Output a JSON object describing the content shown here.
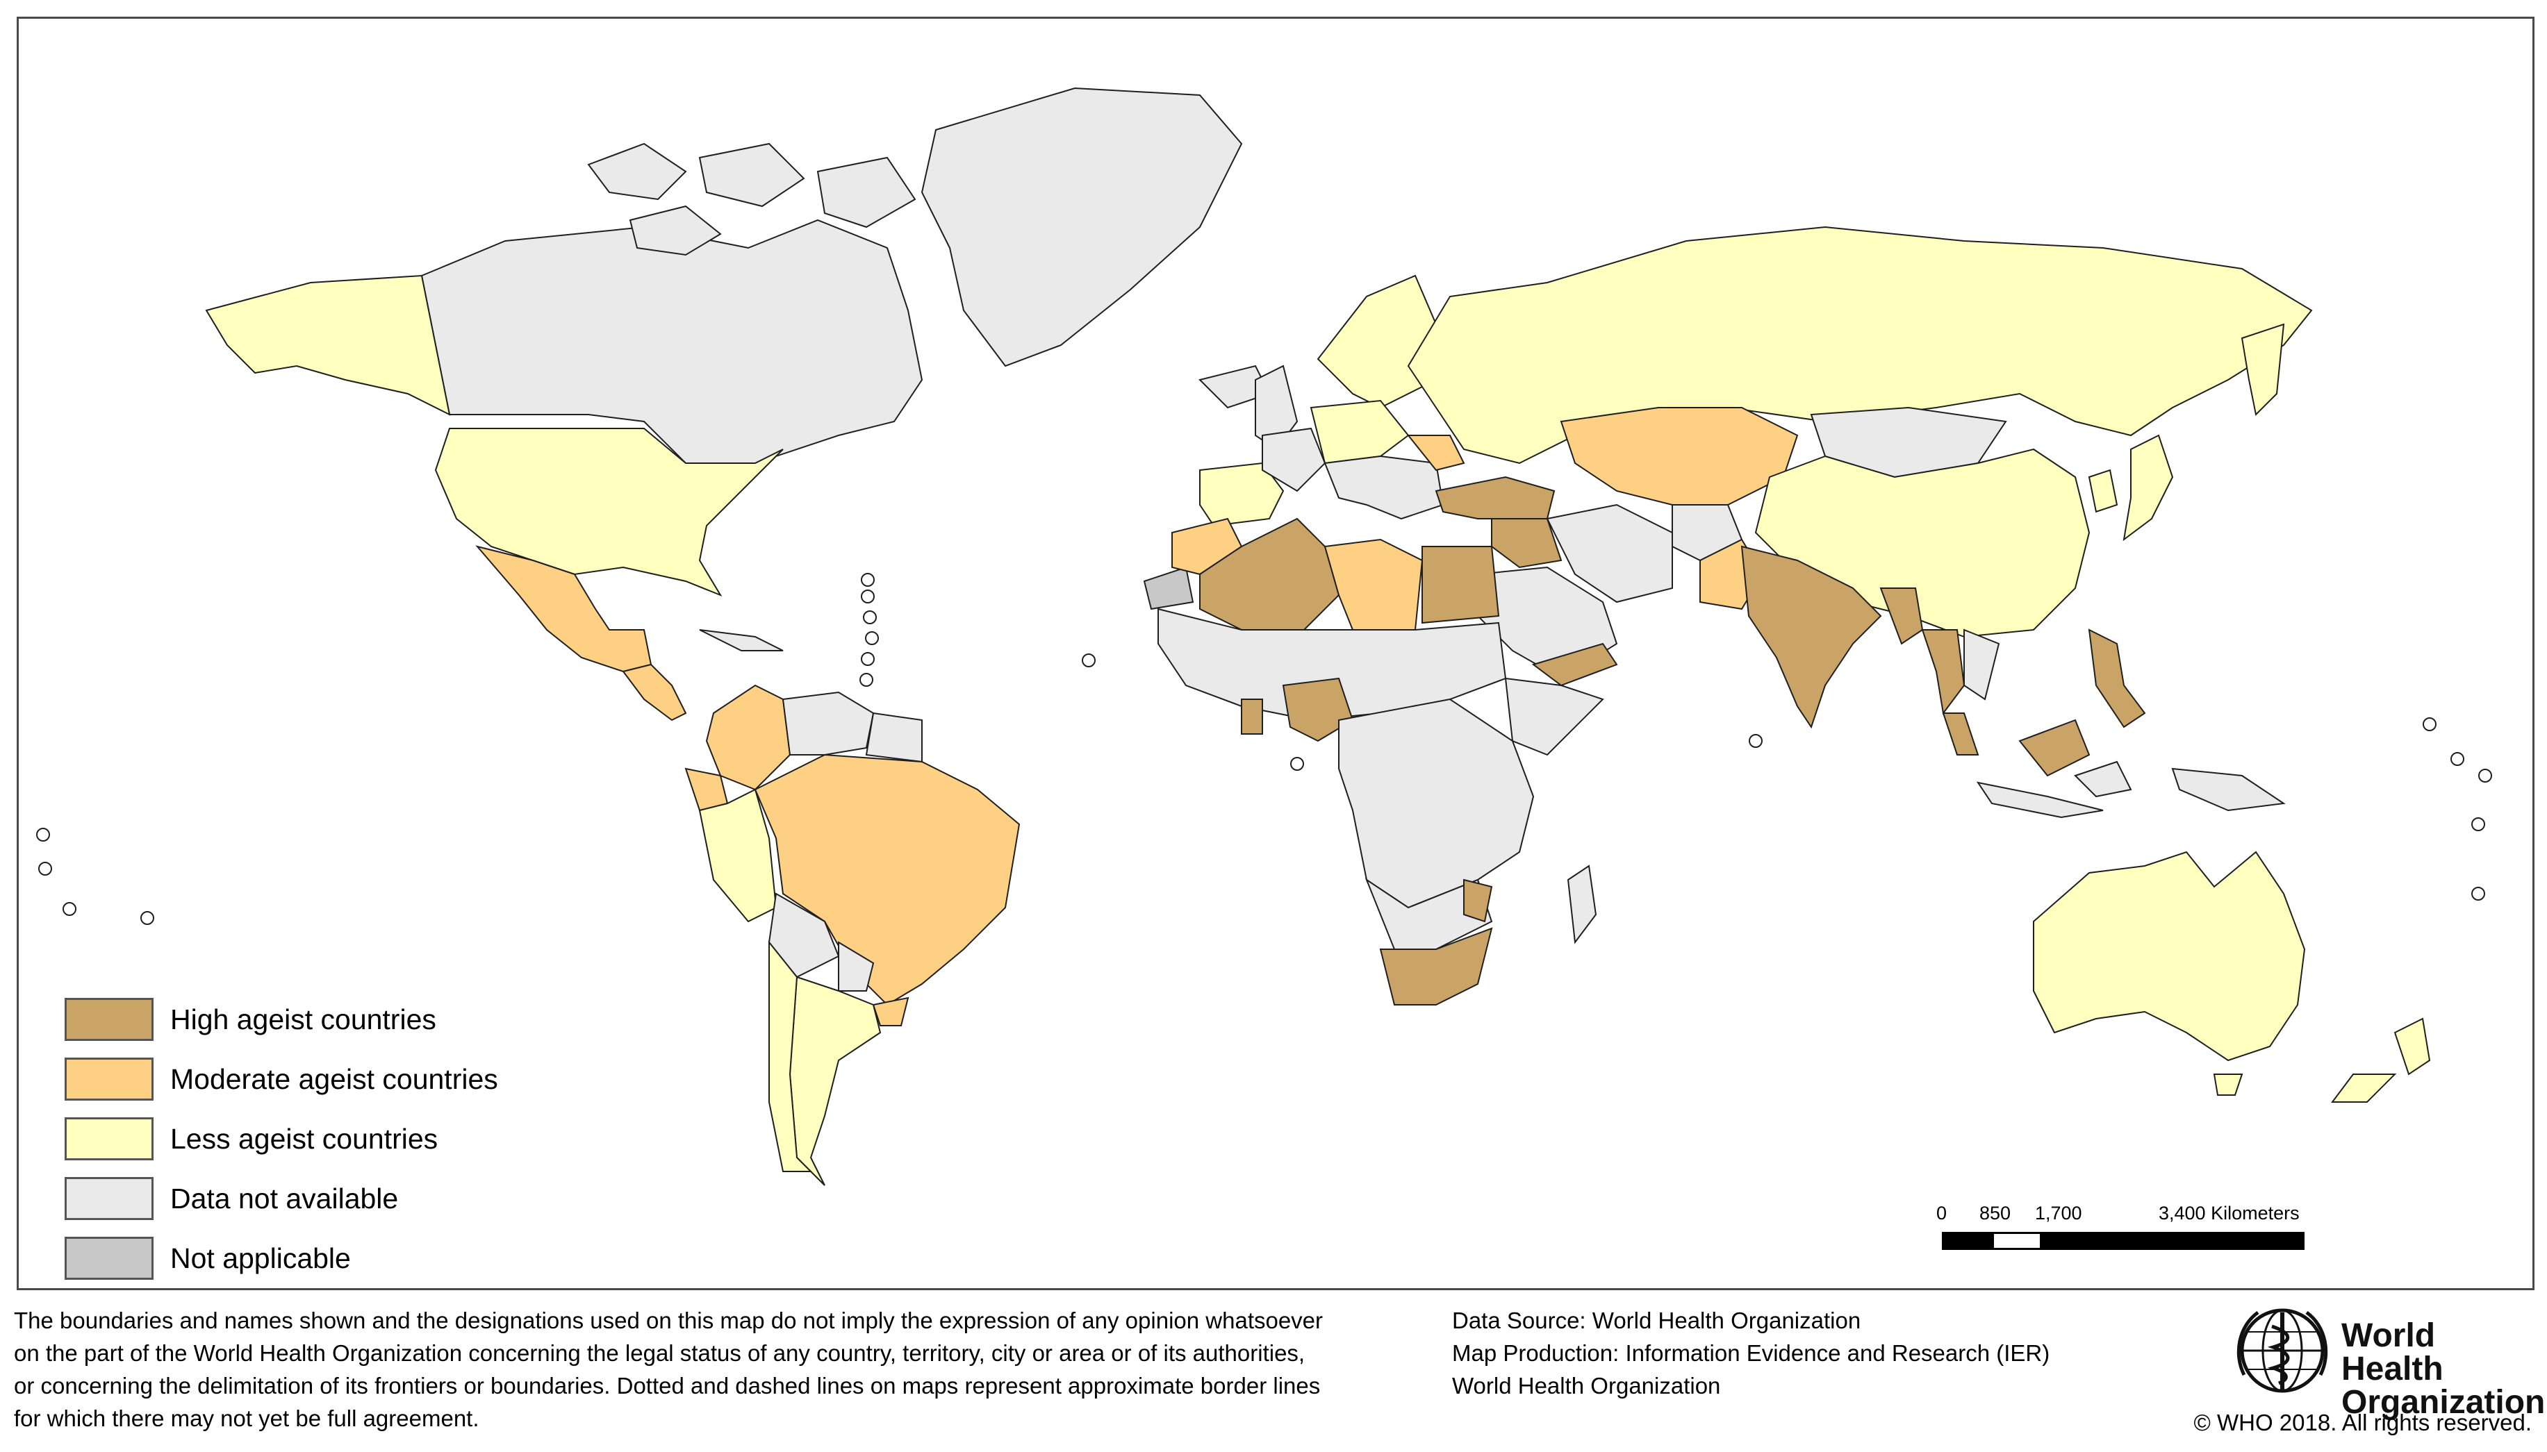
{
  "colors": {
    "high": "#c9a466",
    "moderate": "#fdd084",
    "less": "#ffffc0",
    "na": "#eaeaea",
    "not_applicable": "#c8c8c8",
    "border": "#1f1f1f"
  },
  "legend": [
    {
      "label": "High ageist countries",
      "color_key": "high"
    },
    {
      "label": "Moderate ageist countries",
      "color_key": "moderate"
    },
    {
      "label": "Less ageist countries",
      "color_key": "less"
    },
    {
      "label": "Data not available",
      "color_key": "na"
    },
    {
      "label": "Not applicable",
      "color_key": "not_applicable"
    }
  ],
  "scale_bar": {
    "labels": [
      "0",
      "850",
      "1,700",
      "3,400 Kilometers"
    ]
  },
  "disclaimer": [
    "The boundaries and names shown and the designations used on this map do not imply the expression of any opinion whatsoever",
    "on the part of the World Health Organization concerning the legal status of any country, territory, city or area or of its authorities,",
    "or concerning the delimitation of its frontiers or boundaries. Dotted and dashed lines on maps represent approximate border lines",
    "for which there may not yet be full agreement."
  ],
  "credits": [
    "Data Source: World Health Organization",
    "Map Production: Information Evidence and Research (IER)",
    "World Health Organization"
  ],
  "logo": {
    "line1": "World Health",
    "line2": "Organization",
    "icon": "who-emblem-icon"
  },
  "copyright": "© WHO 2018. All rights reserved."
}
